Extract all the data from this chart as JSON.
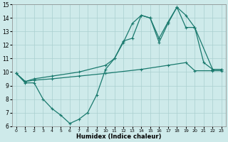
{
  "xlabel": "Humidex (Indice chaleur)",
  "bg_color": "#ceeaea",
  "line_color": "#1a7a6e",
  "grid_color": "#aacfcf",
  "xlim": [
    -0.5,
    23.5
  ],
  "ylim": [
    6,
    15
  ],
  "xticks": [
    0,
    1,
    2,
    3,
    4,
    5,
    6,
    7,
    8,
    9,
    10,
    11,
    12,
    13,
    14,
    15,
    16,
    17,
    18,
    19,
    20,
    21,
    22,
    23
  ],
  "yticks": [
    6,
    7,
    8,
    9,
    10,
    11,
    12,
    13,
    14,
    15
  ],
  "line1_x": [
    0,
    1,
    2,
    3,
    4,
    5,
    6,
    7,
    8,
    9,
    10,
    11,
    12,
    13,
    14,
    15,
    16,
    17,
    18,
    19,
    20,
    21,
    22,
    23
  ],
  "line1_y": [
    9.9,
    9.2,
    9.2,
    8.0,
    7.3,
    6.8,
    6.2,
    6.5,
    7.0,
    8.3,
    10.2,
    11.0,
    12.3,
    12.5,
    14.2,
    14.0,
    12.5,
    13.7,
    14.8,
    14.2,
    13.3,
    10.7,
    10.2,
    10.2
  ],
  "line2_x": [
    0,
    1,
    2,
    4,
    7,
    10,
    11,
    12,
    13,
    14,
    15,
    16,
    17,
    18,
    19,
    20,
    22,
    23
  ],
  "line2_y": [
    9.9,
    9.3,
    9.5,
    9.7,
    10.0,
    10.5,
    11.0,
    12.2,
    13.6,
    14.2,
    14.0,
    12.2,
    13.6,
    14.8,
    13.3,
    13.3,
    10.2,
    10.2
  ],
  "line3_x": [
    0,
    1,
    2,
    4,
    7,
    10,
    14,
    17,
    19,
    20,
    22,
    23
  ],
  "line3_y": [
    9.9,
    9.3,
    9.4,
    9.5,
    9.7,
    9.9,
    10.2,
    10.5,
    10.7,
    10.1,
    10.1,
    10.1
  ]
}
